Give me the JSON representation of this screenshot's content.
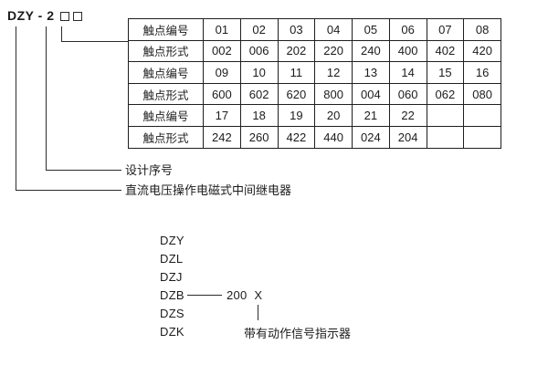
{
  "header": {
    "model_code": "DZY - 2",
    "placeholder_square_count": 2
  },
  "table": {
    "rows": [
      {
        "label": "触点编号",
        "values": [
          "01",
          "02",
          "03",
          "04",
          "05",
          "06",
          "07",
          "08"
        ]
      },
      {
        "label": "触点形式",
        "values": [
          "002",
          "006",
          "202",
          "220",
          "240",
          "400",
          "402",
          "420"
        ]
      },
      {
        "label": "触点编号",
        "values": [
          "09",
          "10",
          "11",
          "12",
          "13",
          "14",
          "15",
          "16"
        ]
      },
      {
        "label": "触点形式",
        "values": [
          "600",
          "602",
          "620",
          "800",
          "004",
          "060",
          "062",
          "080"
        ]
      },
      {
        "label": "触点编号",
        "values": [
          "17",
          "18",
          "19",
          "20",
          "21",
          "22",
          "",
          ""
        ]
      },
      {
        "label": "触点形式",
        "values": [
          "242",
          "260",
          "422",
          "440",
          "024",
          "204",
          "",
          ""
        ]
      }
    ]
  },
  "callouts": {
    "design_serial_label": "设计序号",
    "relay_type_label": "直流电压操作电磁式中间继电器"
  },
  "model_list": {
    "items": [
      "DZY",
      "DZL",
      "DZJ",
      "DZB",
      "DZS",
      "DZK"
    ],
    "dzb_suffix": "200  X",
    "indicator_label": "带有动作信号指示器"
  },
  "colors": {
    "ink": "#1c1c1c",
    "line": "#2b2b2b",
    "background": "#ffffff"
  }
}
